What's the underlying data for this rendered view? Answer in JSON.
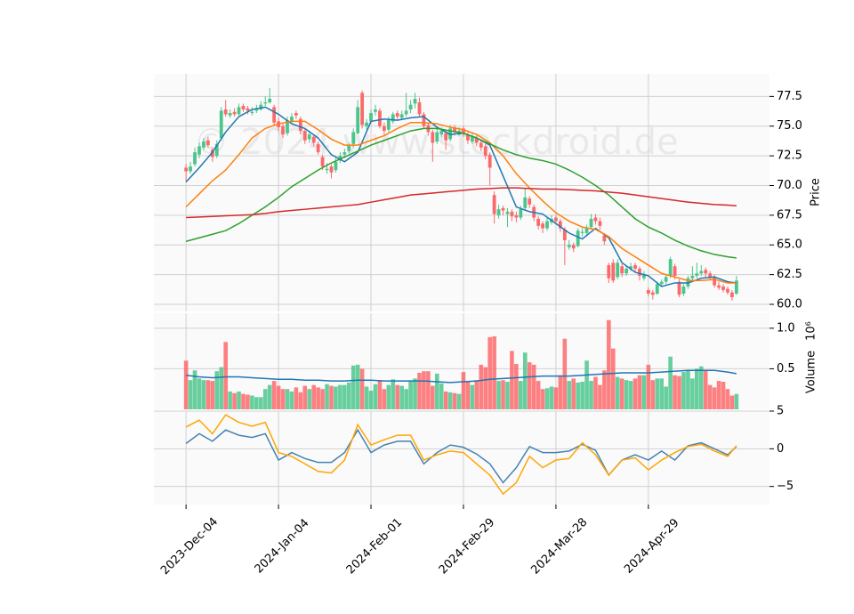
{
  "chart_data": {
    "type": "candlestick",
    "watermark": "© 2024 www.stockdroid.de",
    "up_color": "#4cc58d",
    "down_color": "#fb6a6b",
    "grid": true,
    "xlim": [
      -7.3,
      132.5
    ],
    "xticks": [
      {
        "value": 0,
        "label": "2023-Dec-04"
      },
      {
        "value": 21,
        "label": "2024-Jan-04"
      },
      {
        "value": 42,
        "label": "2024-Feb-01"
      },
      {
        "value": 63,
        "label": "2024-Feb-29"
      },
      {
        "value": 84,
        "label": "2024-Mar-28"
      },
      {
        "value": 105,
        "label": "2024-Apr-29"
      }
    ],
    "ylabel": "Price",
    "ylim": [
      59.4,
      79.4
    ],
    "yticks": [
      {
        "value": 60,
        "label": "60.0"
      },
      {
        "value": 62.5,
        "label": "62.5"
      },
      {
        "value": 65,
        "label": "65.0"
      },
      {
        "value": 67.5,
        "label": "67.5"
      },
      {
        "value": 70,
        "label": "70.0"
      },
      {
        "value": 72.5,
        "label": "72.5"
      },
      {
        "value": 75,
        "label": "75.0"
      },
      {
        "value": 77.5,
        "label": "77.5"
      }
    ],
    "ohlc": [
      [
        71.5,
        71.8,
        70.3,
        71.2
      ],
      [
        71.2,
        72.0,
        71.0,
        71.6
      ],
      [
        71.8,
        73.2,
        71.6,
        72.8
      ],
      [
        72.6,
        73.6,
        72.3,
        73.3
      ],
      [
        73.2,
        74.0,
        73.0,
        73.7
      ],
      [
        73.8,
        74.1,
        73.2,
        73.4
      ],
      [
        73.0,
        73.2,
        72.0,
        72.4
      ],
      [
        72.5,
        73.8,
        72.3,
        73.5
      ],
      [
        74.0,
        76.6,
        73.8,
        76.3
      ],
      [
        76.4,
        77.2,
        75.8,
        76.0
      ],
      [
        75.9,
        76.4,
        75.7,
        76.1
      ],
      [
        76.2,
        76.5,
        75.8,
        76.0
      ],
      [
        76.0,
        76.9,
        75.9,
        76.6
      ],
      [
        76.7,
        76.9,
        76.2,
        76.4
      ],
      [
        76.5,
        76.7,
        76.0,
        76.3
      ],
      [
        76.1,
        76.6,
        75.9,
        76.2
      ],
      [
        76.3,
        76.8,
        76.1,
        76.5
      ],
      [
        76.4,
        77.1,
        76.3,
        76.8
      ],
      [
        76.9,
        77.5,
        76.7,
        77.0
      ],
      [
        77.0,
        78.2,
        76.9,
        77.3
      ],
      [
        76.6,
        76.8,
        75.1,
        75.3
      ],
      [
        75.4,
        75.7,
        74.6,
        74.9
      ],
      [
        75.0,
        75.2,
        74.0,
        74.3
      ],
      [
        74.4,
        75.8,
        74.2,
        75.5
      ],
      [
        75.4,
        76.1,
        75.2,
        75.8
      ],
      [
        76.1,
        76.3,
        75.6,
        75.9
      ],
      [
        75.6,
        75.8,
        74.3,
        74.6
      ],
      [
        74.6,
        74.8,
        73.5,
        73.8
      ],
      [
        73.9,
        74.6,
        73.6,
        74.3
      ],
      [
        74.1,
        74.2,
        73.3,
        73.6
      ],
      [
        73.5,
        73.7,
        72.6,
        72.8
      ],
      [
        72.4,
        72.6,
        71.3,
        71.6
      ],
      [
        71.3,
        71.9,
        71.0,
        71.4
      ],
      [
        71.6,
        71.8,
        70.6,
        71.1
      ],
      [
        71.3,
        72.3,
        71.1,
        72.0
      ],
      [
        72.1,
        72.8,
        71.9,
        72.5
      ],
      [
        72.6,
        73.1,
        72.3,
        72.8
      ],
      [
        72.9,
        73.6,
        72.7,
        73.4
      ],
      [
        73.5,
        74.8,
        73.2,
        74.5
      ],
      [
        74.4,
        77.2,
        74.3,
        76.6
      ],
      [
        77.8,
        78.0,
        74.8,
        75.1
      ],
      [
        75.0,
        75.6,
        74.7,
        75.3
      ],
      [
        75.4,
        76.4,
        75.2,
        76.1
      ],
      [
        76.2,
        76.8,
        75.9,
        76.4
      ],
      [
        76.3,
        76.5,
        74.8,
        75.0
      ],
      [
        75.0,
        75.3,
        74.3,
        74.6
      ],
      [
        74.7,
        75.8,
        74.5,
        75.5
      ],
      [
        75.4,
        76.2,
        75.2,
        76.0
      ],
      [
        76.1,
        76.3,
        75.5,
        75.8
      ],
      [
        75.7,
        76.3,
        75.5,
        76.0
      ],
      [
        76.0,
        77.8,
        75.8,
        76.3
      ],
      [
        76.4,
        77.2,
        76.1,
        76.8
      ],
      [
        76.9,
        77.8,
        76.5,
        77.3
      ],
      [
        77.0,
        77.4,
        75.8,
        76.0
      ],
      [
        76.0,
        76.2,
        74.8,
        75.0
      ],
      [
        75.1,
        75.3,
        74.2,
        74.5
      ],
      [
        74.5,
        74.7,
        72.0,
        73.6
      ],
      [
        73.7,
        74.8,
        73.5,
        74.5
      ],
      [
        74.3,
        74.9,
        74.1,
        74.6
      ],
      [
        74.4,
        74.6,
        73.0,
        73.8
      ],
      [
        73.9,
        75.1,
        73.7,
        74.8
      ],
      [
        74.9,
        75.1,
        74.2,
        74.5
      ],
      [
        74.4,
        74.9,
        74.2,
        74.6
      ],
      [
        74.8,
        75.0,
        74.1,
        74.4
      ],
      [
        74.3,
        74.5,
        73.5,
        73.8
      ],
      [
        73.7,
        74.4,
        73.5,
        74.1
      ],
      [
        74.0,
        74.2,
        73.3,
        73.6
      ],
      [
        73.6,
        73.8,
        72.9,
        73.2
      ],
      [
        73.3,
        73.5,
        72.2,
        72.5
      ],
      [
        72.6,
        72.8,
        70.0,
        71.5
      ],
      [
        69.2,
        69.5,
        66.8,
        67.6
      ],
      [
        67.5,
        68.4,
        67.2,
        68.0
      ],
      [
        68.1,
        68.3,
        67.5,
        67.9
      ],
      [
        67.6,
        68.1,
        66.5,
        67.8
      ],
      [
        67.8,
        68.0,
        67.0,
        67.4
      ],
      [
        67.5,
        67.8,
        66.9,
        67.3
      ],
      [
        67.3,
        68.3,
        67.1,
        68.0
      ],
      [
        68.1,
        69.8,
        67.9,
        69.0
      ],
      [
        68.9,
        69.1,
        68.1,
        68.4
      ],
      [
        68.2,
        68.4,
        67.0,
        67.3
      ],
      [
        67.2,
        67.4,
        66.3,
        66.6
      ],
      [
        66.8,
        67.0,
        66.0,
        66.4
      ],
      [
        66.4,
        67.3,
        66.2,
        67.0
      ],
      [
        66.9,
        67.5,
        66.7,
        67.2
      ],
      [
        67.3,
        67.5,
        66.7,
        67.0
      ],
      [
        67.0,
        67.2,
        66.1,
        66.4
      ],
      [
        66.3,
        66.5,
        63.3,
        65.4
      ],
      [
        64.8,
        65.4,
        64.6,
        65.0
      ],
      [
        65.0,
        65.2,
        64.4,
        64.7
      ],
      [
        64.9,
        66.4,
        64.8,
        66.2
      ],
      [
        66.0,
        66.4,
        65.7,
        66.1
      ],
      [
        66.0,
        66.7,
        65.8,
        66.4
      ],
      [
        66.5,
        67.6,
        66.3,
        67.2
      ],
      [
        67.3,
        67.6,
        66.7,
        67.0
      ],
      [
        67.0,
        67.3,
        66.3,
        66.6
      ],
      [
        65.8,
        66.0,
        65.0,
        65.3
      ],
      [
        63.3,
        63.5,
        61.8,
        62.2
      ],
      [
        63.5,
        63.8,
        61.8,
        62.0
      ],
      [
        62.3,
        63.8,
        62.1,
        63.5
      ],
      [
        63.2,
        63.4,
        62.3,
        62.6
      ],
      [
        62.6,
        63.3,
        62.4,
        63.0
      ],
      [
        63.0,
        63.5,
        62.8,
        63.2
      ],
      [
        63.3,
        63.5,
        62.7,
        63.0
      ],
      [
        63.0,
        63.2,
        62.0,
        62.4
      ],
      [
        62.2,
        62.8,
        62.0,
        62.5
      ],
      [
        61.2,
        61.4,
        60.7,
        60.9
      ],
      [
        61.0,
        61.2,
        60.4,
        60.8
      ],
      [
        60.9,
        61.9,
        60.8,
        61.7
      ],
      [
        61.7,
        62.1,
        61.5,
        61.9
      ],
      [
        61.9,
        62.5,
        61.7,
        62.3
      ],
      [
        62.4,
        64.0,
        62.2,
        63.8
      ],
      [
        63.2,
        63.4,
        62.1,
        62.4
      ],
      [
        61.9,
        62.1,
        60.6,
        60.8
      ],
      [
        60.9,
        61.7,
        60.7,
        61.5
      ],
      [
        61.5,
        62.4,
        61.3,
        62.2
      ],
      [
        62.2,
        63.2,
        62.0,
        62.4
      ],
      [
        62.4,
        63.5,
        62.2,
        62.6
      ],
      [
        62.6,
        63.3,
        62.4,
        62.8
      ],
      [
        62.9,
        63.1,
        62.3,
        62.6
      ],
      [
        62.6,
        62.8,
        62.0,
        62.3
      ],
      [
        62.3,
        62.5,
        61.4,
        61.6
      ],
      [
        61.6,
        61.9,
        61.2,
        61.4
      ],
      [
        61.5,
        61.7,
        61.0,
        61.2
      ],
      [
        61.3,
        61.5,
        60.8,
        61.0
      ],
      [
        61.0,
        61.2,
        60.3,
        60.6
      ],
      [
        60.9,
        62.4,
        60.8,
        62.0
      ]
    ],
    "ma_x": [
      0,
      3,
      6,
      9,
      12,
      15,
      18,
      21,
      24,
      27,
      30,
      33,
      36,
      39,
      42,
      45,
      48,
      51,
      54,
      57,
      60,
      63,
      66,
      69,
      72,
      75,
      78,
      81,
      84,
      87,
      90,
      93,
      96,
      99,
      102,
      105,
      108,
      111,
      114,
      117,
      120,
      123,
      125
    ],
    "moving_averages": [
      {
        "color": "#1f77b4",
        "values": [
          70.3,
          71.5,
          72.8,
          74.5,
          75.8,
          76.4,
          76.6,
          76.0,
          75.2,
          74.8,
          74.0,
          72.6,
          72.0,
          72.8,
          75.4,
          75.6,
          75.5,
          75.7,
          75.8,
          74.9,
          74.3,
          74.4,
          74.0,
          73.4,
          70.8,
          68.2,
          67.8,
          67.6,
          66.8,
          66.0,
          65.5,
          66.4,
          65.6,
          63.5,
          62.7,
          62.4,
          61.5,
          61.8,
          61.8,
          62.2,
          62.3,
          61.9,
          61.8
        ]
      },
      {
        "color": "#ff7f0e",
        "values": [
          68.2,
          69.3,
          70.4,
          71.3,
          72.6,
          74.0,
          74.8,
          75.2,
          75.4,
          75.4,
          74.7,
          73.9,
          73.4,
          73.4,
          73.8,
          74.2,
          74.8,
          75.3,
          75.3,
          75.2,
          74.9,
          74.7,
          74.3,
          73.6,
          72.5,
          71.0,
          69.8,
          68.7,
          67.7,
          67.0,
          66.5,
          66.3,
          65.7,
          64.7,
          64.0,
          63.3,
          62.6,
          62.3,
          62.0,
          62.0,
          62.1,
          61.8,
          61.8
        ]
      },
      {
        "color": "#2ca02c",
        "values": [
          65.3,
          65.6,
          65.9,
          66.2,
          66.8,
          67.5,
          68.2,
          69.0,
          69.9,
          70.6,
          71.3,
          71.9,
          72.4,
          72.9,
          73.4,
          73.8,
          74.2,
          74.6,
          74.8,
          74.8,
          74.6,
          74.4,
          74.0,
          73.5,
          73.0,
          72.6,
          72.3,
          72.1,
          71.8,
          71.3,
          70.7,
          70.0,
          69.2,
          68.2,
          67.2,
          66.5,
          66.0,
          65.4,
          64.9,
          64.5,
          64.2,
          64.0,
          63.9
        ]
      },
      {
        "color": "#d62728",
        "values": [
          67.3,
          67.35,
          67.4,
          67.45,
          67.5,
          67.55,
          67.65,
          67.8,
          67.9,
          68.0,
          68.1,
          68.2,
          68.3,
          68.4,
          68.6,
          68.8,
          69.0,
          69.2,
          69.3,
          69.4,
          69.5,
          69.6,
          69.7,
          69.75,
          69.8,
          69.8,
          69.75,
          69.7,
          69.7,
          69.65,
          69.6,
          69.55,
          69.45,
          69.35,
          69.2,
          69.05,
          68.9,
          68.75,
          68.6,
          68.5,
          68.4,
          68.35,
          68.3
        ]
      }
    ],
    "volume": {
      "ylabel": "Volume",
      "offset_label": "10⁶",
      "ylim": [
        0,
        1.185
      ],
      "yticks": [
        0.5,
        {
          "value": 1,
          "label": "1.0"
        }
      ],
      "values": [
        0.6,
        0.36,
        0.48,
        0.38,
        0.36,
        0.36,
        0.35,
        0.47,
        0.52,
        0.83,
        0.22,
        0.2,
        0.22,
        0.19,
        0.18,
        0.17,
        0.15,
        0.15,
        0.25,
        0.3,
        0.35,
        0.29,
        0.25,
        0.25,
        0.22,
        0.27,
        0.21,
        0.29,
        0.25,
        0.3,
        0.27,
        0.25,
        0.31,
        0.29,
        0.28,
        0.3,
        0.3,
        0.33,
        0.54,
        0.55,
        0.5,
        0.28,
        0.23,
        0.31,
        0.36,
        0.25,
        0.3,
        0.37,
        0.3,
        0.29,
        0.25,
        0.35,
        0.38,
        0.45,
        0.47,
        0.47,
        0.29,
        0.44,
        0.32,
        0.22,
        0.21,
        0.2,
        0.19,
        0.46,
        0.35,
        0.3,
        0.36,
        0.55,
        0.52,
        0.89,
        0.9,
        0.35,
        0.36,
        0.34,
        0.72,
        0.56,
        0.35,
        0.7,
        0.58,
        0.55,
        0.35,
        0.25,
        0.26,
        0.28,
        0.27,
        0.42,
        0.87,
        0.35,
        0.38,
        0.33,
        0.34,
        0.6,
        0.35,
        0.4,
        0.3,
        0.48,
        1.1,
        0.75,
        0.4,
        0.38,
        0.36,
        0.35,
        0.38,
        0.42,
        0.42,
        0.55,
        0.36,
        0.38,
        0.38,
        0.28,
        0.65,
        0.42,
        0.41,
        0.46,
        0.48,
        0.38,
        0.5,
        0.53,
        0.48,
        0.3,
        0.27,
        0.35,
        0.34,
        0.25,
        0.17,
        0.19
      ],
      "ma": {
        "color": "#1f77b4",
        "values": [
          0.42,
          0.4,
          0.39,
          0.4,
          0.4,
          0.39,
          0.38,
          0.37,
          0.37,
          0.36,
          0.36,
          0.35,
          0.35,
          0.36,
          0.36,
          0.35,
          0.35,
          0.35,
          0.35,
          0.34,
          0.33,
          0.34,
          0.35,
          0.37,
          0.38,
          0.39,
          0.4,
          0.41,
          0.41,
          0.41,
          0.42,
          0.43,
          0.44,
          0.45,
          0.45,
          0.45,
          0.46,
          0.47,
          0.48,
          0.48,
          0.48,
          0.46,
          0.44
        ]
      }
    },
    "indicator": {
      "ylim": [
        -7.4,
        5
      ],
      "yticks": [
        {
          "value": -5,
          "label": "−5"
        },
        0,
        5
      ],
      "series": [
        {
          "color": "#4682b4",
          "values": [
            0.7,
            2.0,
            1.0,
            2.5,
            1.8,
            1.5,
            2.0,
            -1.5,
            -0.5,
            -1.3,
            -1.8,
            -1.8,
            -0.5,
            2.5,
            -0.5,
            0.5,
            1.0,
            1.0,
            -2.0,
            -0.5,
            0.5,
            0.2,
            -0.7,
            -2.0,
            -4.5,
            -2.5,
            0.3,
            -0.5,
            -0.5,
            -0.3,
            0.6,
            -0.2,
            -3.5,
            -1.5,
            -0.8,
            -1.5,
            -0.3,
            -1.5,
            0.4,
            0.8,
            0.0,
            -0.8,
            0.3
          ]
        },
        {
          "color": "#ffa500",
          "values": [
            2.9,
            3.8,
            2.0,
            4.5,
            3.5,
            3.0,
            3.5,
            -0.5,
            -1.0,
            -2.0,
            -3.0,
            -3.2,
            -1.5,
            3.2,
            0.5,
            1.2,
            1.8,
            1.8,
            -1.5,
            -0.8,
            -0.3,
            -0.5,
            -2.0,
            -3.5,
            -6.0,
            -4.5,
            -1.0,
            -2.5,
            -1.5,
            -1.3,
            0.8,
            -0.8,
            -3.5,
            -1.5,
            -1.2,
            -2.8,
            -1.5,
            -0.5,
            0.3,
            0.6,
            -0.3,
            -1.0,
            0.4
          ]
        }
      ]
    }
  }
}
